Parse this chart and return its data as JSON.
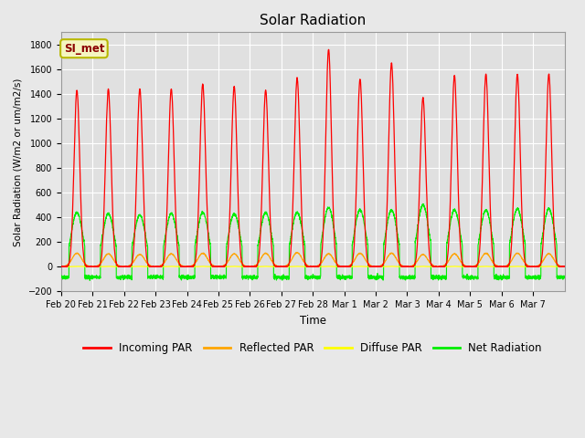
{
  "title": "Solar Radiation",
  "ylabel": "Solar Radiation (W/m2 or um/m2/s)",
  "xlabel": "Time",
  "ylim": [
    -200,
    1900
  ],
  "yticks": [
    -200,
    0,
    200,
    400,
    600,
    800,
    1000,
    1200,
    1400,
    1600,
    1800
  ],
  "background_color": "#e8e8e8",
  "plot_bg_color": "#e0e0e0",
  "grid_color": "#ffffff",
  "annotation_text": "SI_met",
  "annotation_bg": "#f5f5c0",
  "annotation_border": "#b8b800",
  "colors": {
    "incoming": "#ff0000",
    "reflected": "#ffa500",
    "diffuse": "#ffff00",
    "net": "#00ee00"
  },
  "legend_labels": [
    "Incoming PAR",
    "Reflected PAR",
    "Diffuse PAR",
    "Net Radiation"
  ],
  "n_days": 16,
  "x_tick_labels": [
    "Feb 20",
    "Feb 21",
    "Feb 22",
    "Feb 23",
    "Feb 24",
    "Feb 25",
    "Feb 26",
    "Feb 27",
    "Feb 28",
    "Mar 1",
    "Mar 2",
    "Mar 3",
    "Mar 4",
    "Mar 5",
    "Mar 6",
    "Mar 7"
  ],
  "incoming_peaks": [
    1430,
    1440,
    1440,
    1440,
    1480,
    1460,
    1430,
    1530,
    1760,
    1520,
    1650,
    1370,
    1550,
    1560,
    1560,
    1560
  ],
  "net_peaks": [
    440,
    430,
    420,
    430,
    440,
    430,
    440,
    440,
    480,
    460,
    460,
    500,
    460,
    460,
    470,
    470
  ],
  "reflected_peaks": [
    110,
    105,
    100,
    105,
    110,
    105,
    110,
    115,
    105,
    110,
    110,
    100,
    105,
    110,
    110,
    105
  ],
  "net_night": -85,
  "figsize": [
    6.4,
    4.8
  ],
  "dpi": 100
}
